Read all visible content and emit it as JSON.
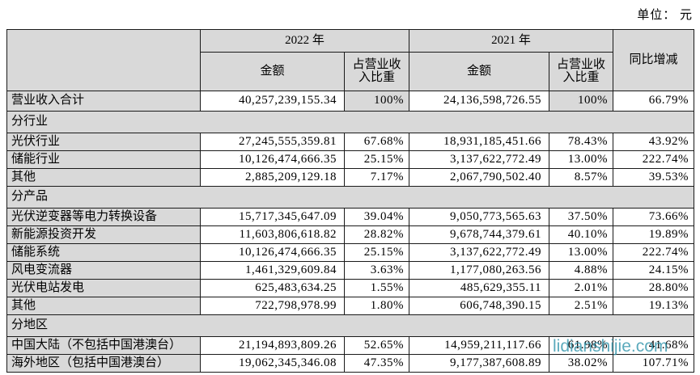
{
  "unit_label": "单位： 元",
  "watermark_text": "lidianshijie.com",
  "colors": {
    "shaded_cell_bg": "#d9d9d9",
    "watermark_color": "#3898ae",
    "border_color": "#1a1a1a"
  },
  "table": {
    "headers": {
      "year_2022": "2022 年",
      "year_2021": "2021 年",
      "amount_2022": "金额",
      "pct_2022": "占营业收入比重",
      "amount_2021": "金额",
      "pct_2021": "占营业收入比重",
      "yoy": "同比增减"
    },
    "rows": [
      {
        "type": "data",
        "total": true,
        "pct_shaded": true,
        "label": "营业收入合计",
        "amount_2022": "40,257,239,155.34",
        "pct_2022": "100%",
        "amount_2021": "24,136,598,726.55",
        "pct_2021": "100%",
        "yoy": "66.79%"
      },
      {
        "type": "section",
        "label": "分行业"
      },
      {
        "type": "data",
        "label": "光伏行业",
        "amount_2022": "27,245,555,359.81",
        "pct_2022": "67.68%",
        "amount_2021": "18,931,185,451.66",
        "pct_2021": "78.43%",
        "yoy": "43.92%"
      },
      {
        "type": "data",
        "label": "储能行业",
        "amount_2022": "10,126,474,666.35",
        "pct_2022": "25.15%",
        "amount_2021": "3,137,622,772.49",
        "pct_2021": "13.00%",
        "yoy": "222.74%"
      },
      {
        "type": "data",
        "label": "其他",
        "amount_2022": "2,885,209,129.18",
        "pct_2022": "7.17%",
        "amount_2021": "2,067,790,502.40",
        "pct_2021": "8.57%",
        "yoy": "39.53%"
      },
      {
        "type": "section",
        "label": "分产品"
      },
      {
        "type": "data",
        "label": "光伏逆变器等电力转换设备",
        "amount_2022": "15,717,345,647.09",
        "pct_2022": "39.04%",
        "amount_2021": "9,050,773,565.63",
        "pct_2021": "37.50%",
        "yoy": "73.66%"
      },
      {
        "type": "data",
        "label": "新能源投资开发",
        "amount_2022": "11,603,806,618.82",
        "pct_2022": "28.82%",
        "amount_2021": "9,678,744,379.61",
        "pct_2021": "40.10%",
        "yoy": "19.89%"
      },
      {
        "type": "data",
        "label": "储能系统",
        "amount_2022": "10,126,474,666.35",
        "pct_2022": "25.15%",
        "amount_2021": "3,137,622,772.49",
        "pct_2021": "13.00%",
        "yoy": "222.74%"
      },
      {
        "type": "data",
        "label": "风电变流器",
        "amount_2022": "1,461,329,609.84",
        "pct_2022": "3.63%",
        "amount_2021": "1,177,080,263.56",
        "pct_2021": "4.88%",
        "yoy": "24.15%"
      },
      {
        "type": "data",
        "label": "光伏电站发电",
        "amount_2022": "625,483,634.25",
        "pct_2022": "1.55%",
        "amount_2021": "485,629,355.11",
        "pct_2021": "2.01%",
        "yoy": "28.80%"
      },
      {
        "type": "data",
        "label": "其他",
        "amount_2022": "722,798,978.99",
        "pct_2022": "1.80%",
        "amount_2021": "606,748,390.15",
        "pct_2021": "2.51%",
        "yoy": "19.13%"
      },
      {
        "type": "section",
        "label": "分地区"
      },
      {
        "type": "data",
        "label": "中国大陆（不包括中国港澳台）",
        "amount_2022": "21,194,893,809.26",
        "pct_2022": "52.65%",
        "amount_2021": "14,959,211,117.66",
        "pct_2021": "61.98%",
        "yoy": "41.68%"
      },
      {
        "type": "data",
        "label": "海外地区（包括中国港澳台）",
        "amount_2022": "19,062,345,346.08",
        "pct_2022": "47.35%",
        "amount_2021": "9,177,387,608.89",
        "pct_2021": "38.02%",
        "yoy": "107.71%"
      }
    ]
  }
}
